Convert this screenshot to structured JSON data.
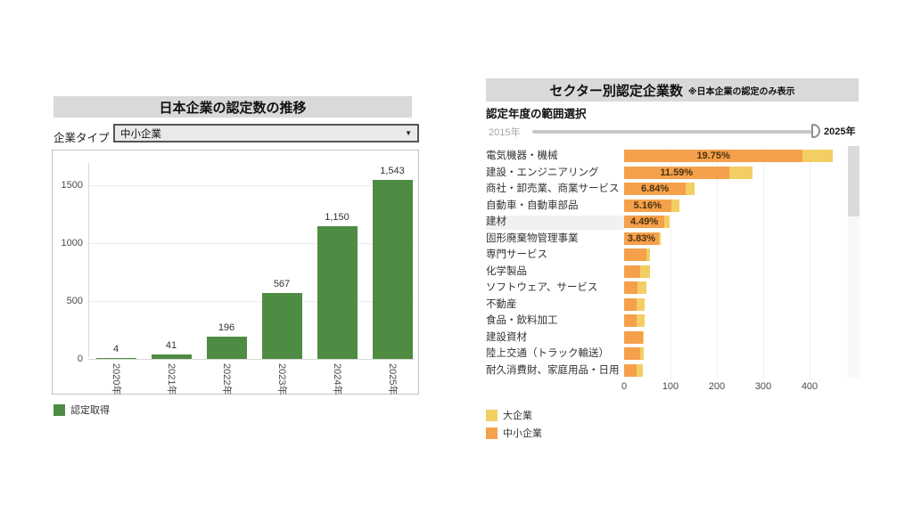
{
  "left_panel": {
    "title": "日本企業の認定数の推移",
    "filter": {
      "label": "企業タイプ",
      "value": "中小企業",
      "dropdown_icon": "▼"
    },
    "legend": {
      "label": "認定取得",
      "color": "#4e8c43"
    },
    "chart_data": {
      "type": "bar",
      "title": "日本企業の認定数の推移",
      "categories": [
        "2020年",
        "2021年",
        "2022年",
        "2023年",
        "2024年",
        "2025年"
      ],
      "values": [
        4,
        41,
        196,
        567,
        1150,
        1543
      ],
      "value_labels": [
        "4",
        "41",
        "196",
        "567",
        "1,150",
        "1,543"
      ],
      "series_name": "認定取得",
      "bar_color": "#4e8c43",
      "yticks": [
        0,
        500,
        1000,
        1500
      ],
      "ylim": [
        0,
        1650
      ],
      "grid": true
    }
  },
  "right_panel": {
    "title": "セクター別認定企業数",
    "subtitle": "※日本企業の認定のみ表示",
    "range_selector": {
      "label": "認定年度の範囲選択",
      "start": "2015年",
      "end": "2025年"
    },
    "legend": [
      {
        "label": "大企業",
        "color": "#f3ce63"
      },
      {
        "label": "中小企業",
        "color": "#f5a04a"
      }
    ],
    "chart_data": {
      "type": "bar",
      "orientation": "horizontal",
      "stacked": true,
      "categories": [
        "電気機器・機械",
        "建設・エンジニアリング",
        "商社・卸売業、商業サービス",
        "自動車・自動車部品",
        "建材",
        "固形廃棄物管理事業",
        "専門サービス",
        "化学製品",
        "ソフトウェア、サービス",
        "不動産",
        "食品・飲料加工",
        "建設資材",
        "陸上交通（トラック輸送）",
        "耐久消費財、家庭用品・日用"
      ],
      "series": [
        {
          "name": "中小企業",
          "color": "#f5a04a",
          "values": [
            385,
            226,
            133,
            101,
            87,
            75,
            48,
            35,
            28,
            26,
            26,
            40,
            35,
            26
          ]
        },
        {
          "name": "大企業",
          "color": "#f3ce63",
          "values": [
            65,
            51,
            19,
            19,
            11,
            3,
            8,
            21,
            21,
            18,
            18,
            3,
            8,
            14
          ]
        }
      ],
      "bar_labels": [
        "19.75%",
        "11.59%",
        "6.84%",
        "5.16%",
        "4.49%",
        "3.83%",
        "",
        "",
        "",
        "",
        "",
        "",
        "",
        ""
      ],
      "highlighted_category": "建材",
      "xticks": [
        0,
        100,
        200,
        300,
        400
      ],
      "xlim": [
        0,
        500
      ],
      "grid": true,
      "legend_position": "bottom-left"
    }
  }
}
